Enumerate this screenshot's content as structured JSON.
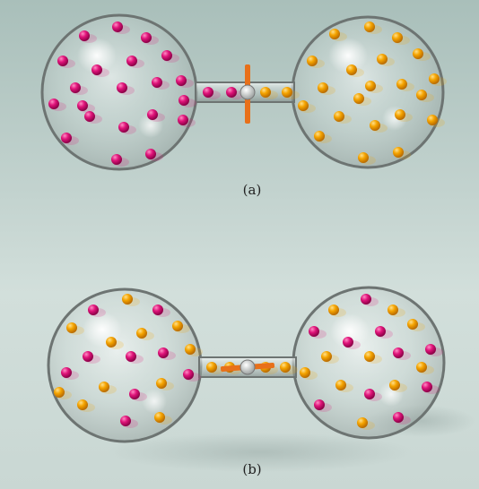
{
  "panels": [
    {
      "id": "a",
      "label": "(a)",
      "state": "separated",
      "left_bulb_particles": "magenta",
      "right_bulb_particles": "orange",
      "valve": "open-vertical"
    },
    {
      "id": "b",
      "label": "(b)",
      "state": "mixed",
      "left_bulb_particles": "mixed",
      "right_bulb_particles": "mixed",
      "valve": "horizontal"
    }
  ],
  "colors": {
    "magenta_particle": "#e0147a",
    "orange_particle": "#f5a400",
    "valve": "#e8701a",
    "glass_rim": "#6d7472"
  }
}
